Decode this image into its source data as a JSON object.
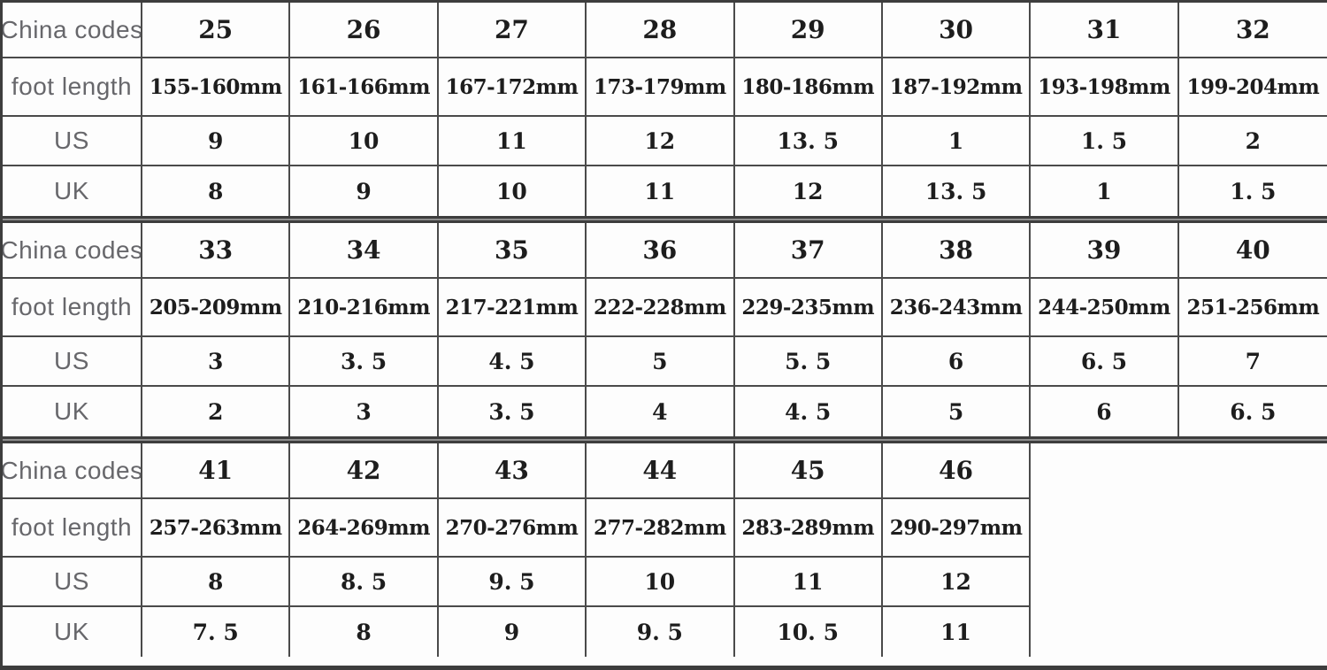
{
  "chart_data": {
    "type": "table",
    "row_labels": [
      "China codes",
      "foot length",
      "US",
      "UK"
    ],
    "sections": [
      {
        "cells": [
          [
            "25",
            "26",
            "27",
            "28",
            "29",
            "30",
            "31",
            "32"
          ],
          [
            "155-160mm",
            "161-166mm",
            "167-172mm",
            "173-179mm",
            "180-186mm",
            "187-192mm",
            "193-198mm",
            "199-204mm"
          ],
          [
            "9",
            "10",
            "11",
            "12",
            "13. 5",
            "1",
            "1. 5",
            "2"
          ],
          [
            "8",
            "9",
            "10",
            "11",
            "12",
            "13. 5",
            "1",
            "1. 5"
          ]
        ]
      },
      {
        "cells": [
          [
            "33",
            "34",
            "35",
            "36",
            "37",
            "38",
            "39",
            "40"
          ],
          [
            "205-209mm",
            "210-216mm",
            "217-221mm",
            "222-228mm",
            "229-235mm",
            "236-243mm",
            "244-250mm",
            "251-256mm"
          ],
          [
            "3",
            "3. 5",
            "4. 5",
            "5",
            "5. 5",
            "6",
            "6. 5",
            "7"
          ],
          [
            "2",
            "3",
            "3. 5",
            "4",
            "4. 5",
            "5",
            "6",
            "6. 5"
          ]
        ]
      },
      {
        "cells": [
          [
            "41",
            "42",
            "43",
            "44",
            "45",
            "46"
          ],
          [
            "257-263mm",
            "264-269mm",
            "270-276mm",
            "277-282mm",
            "283-289mm",
            "290-297mm"
          ],
          [
            "8",
            "8. 5",
            "9. 5",
            "10",
            "11",
            "12"
          ],
          [
            "7. 5",
            "8",
            "9",
            "9. 5",
            "10. 5",
            "11"
          ]
        ]
      }
    ],
    "colors": {
      "line": "#3d3d3d",
      "label_text": "#67676b",
      "value_text": "#1d1d1d",
      "background": "#fdfdfd"
    }
  }
}
